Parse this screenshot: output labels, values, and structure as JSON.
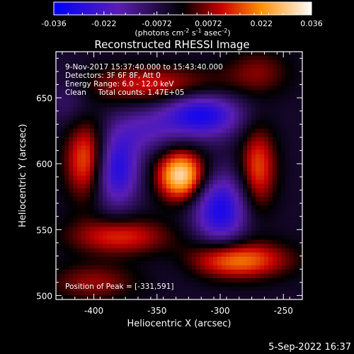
{
  "chart_data": {
    "type": "heatmap",
    "title": "Reconstructed RHESSI Image",
    "xlabel": "Heliocentric X (arcsec)",
    "ylabel": "Heliocentric Y (arcsec)",
    "xlim": [
      -430,
      -235
    ],
    "ylim": [
      497,
      685
    ],
    "x_ticks": [
      -400,
      -350,
      -300,
      -250
    ],
    "y_ticks": [
      500,
      550,
      600,
      650
    ],
    "x_tick_labels": [
      "-400",
      "-350",
      "-300",
      "-250"
    ],
    "y_tick_labels": [
      "500",
      "550",
      "600",
      "650"
    ],
    "colorbar": {
      "min": -0.036,
      "max": 0.036,
      "ticks": [
        -0.036,
        -0.022,
        -0.0072,
        0.0072,
        0.022,
        0.036
      ],
      "tick_labels": [
        "-0.036",
        "-0.022",
        "-0.0072",
        "0.0072",
        "0.022",
        "0.036"
      ],
      "unit_label": "(photons cm",
      "unit_exp1": "-2",
      "unit_mid": " s",
      "unit_exp2": "-1",
      "unit_mid2": " asec",
      "unit_exp3": "-2",
      "unit_end": ")"
    },
    "annotations": {
      "time_range": "9-Nov-2017 15:37:40.000 to 15:43:40.000",
      "detectors": "Detectors: 3F 6F 8F, Att 0",
      "energy_range": "Energy Range: 6.0 - 12.0 keV",
      "clean_counts": "Clean     Total counts: 1.47E+05",
      "peak": "Position of Peak = [-331,591]"
    },
    "peak_position": [
      -331,
      591
    ],
    "features": [
      {
        "x": -331,
        "y": 591,
        "value": 0.036,
        "sx": 13,
        "sy": 13
      },
      {
        "x": -315,
        "y": 637,
        "value": -0.028,
        "sx": 22,
        "sy": 12
      },
      {
        "x": -383,
        "y": 596,
        "value": -0.027,
        "sx": 13,
        "sy": 20
      },
      {
        "x": -300,
        "y": 565,
        "value": -0.027,
        "sx": 15,
        "sy": 19
      },
      {
        "x": -405,
        "y": 603,
        "value": 0.024,
        "sx": 12,
        "sy": 21
      },
      {
        "x": -270,
        "y": 597,
        "value": 0.02,
        "sx": 10,
        "sy": 22
      },
      {
        "x": -290,
        "y": 527,
        "value": 0.026,
        "sx": 30,
        "sy": 10
      },
      {
        "x": -355,
        "y": 660,
        "value": 0.016,
        "sx": 40,
        "sy": 10
      },
      {
        "x": -380,
        "y": 545,
        "value": 0.018,
        "sx": 28,
        "sy": 10
      },
      {
        "x": -400,
        "y": 510,
        "value": 0.012,
        "sx": 25,
        "sy": 10
      },
      {
        "x": -270,
        "y": 670,
        "value": 0.01,
        "sx": 18,
        "sy": 12
      },
      {
        "x": -360,
        "y": 625,
        "value": -0.012,
        "sx": 18,
        "sy": 12
      },
      {
        "x": -420,
        "y": 650,
        "value": -0.008,
        "sx": 15,
        "sy": 15
      },
      {
        "x": -330,
        "y": 525,
        "value": -0.006,
        "sx": 20,
        "sy": 10
      }
    ]
  },
  "footer_date": "5-Sep-2022 16:37"
}
